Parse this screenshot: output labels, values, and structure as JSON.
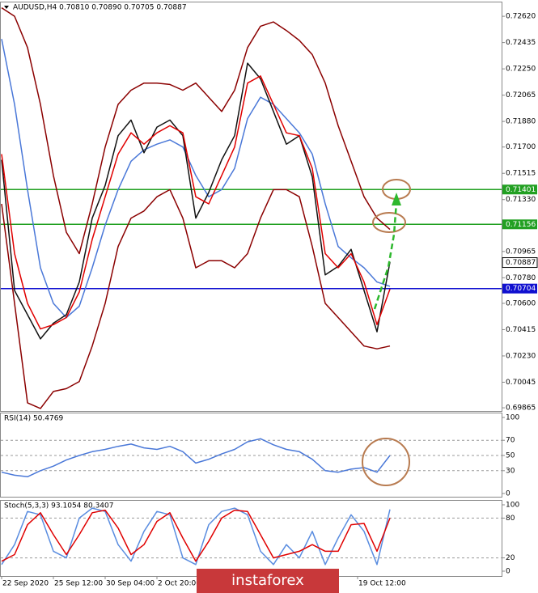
{
  "chart_data": [
    {
      "type": "line",
      "title": "AUDUSD,H4 0.70810 0.70890 0.70705 0.70887",
      "x": [
        0,
        4,
        8,
        12,
        16,
        20,
        24,
        28,
        32,
        36,
        40,
        44,
        48,
        52,
        56,
        60,
        64,
        68,
        72,
        76,
        80,
        84,
        88,
        92,
        96,
        100,
        104,
        108,
        112,
        116,
        120
      ],
      "xlim": [
        0,
        155
      ],
      "series": [
        {
          "color": "#8b0000",
          "values": [
            0.7268,
            0.7262,
            0.724,
            0.72,
            0.715,
            0.711,
            0.7095,
            0.713,
            0.717,
            0.72,
            0.721,
            0.7215,
            0.7215,
            0.7214,
            0.721,
            0.7215,
            0.7205,
            0.7195,
            0.721,
            0.724,
            0.7255,
            0.7258,
            0.7252,
            0.7245,
            0.7235,
            0.7215,
            0.7185,
            0.716,
            0.7135,
            0.712,
            0.7112
          ]
        },
        {
          "color": "#8b0000",
          "values": [
            0.713,
            0.706,
            0.699,
            0.6986,
            0.6998,
            0.7,
            0.7005,
            0.703,
            0.706,
            0.71,
            0.712,
            0.7125,
            0.7135,
            0.714,
            0.712,
            0.7085,
            0.709,
            0.709,
            0.7085,
            0.7095,
            0.712,
            0.714,
            0.714,
            0.7135,
            0.71,
            0.706,
            0.705,
            0.704,
            0.703,
            0.7028,
            0.703
          ]
        },
        {
          "color": "#4a78d8",
          "values": [
            0.7246,
            0.72,
            0.714,
            0.7085,
            0.706,
            0.705,
            0.7058,
            0.7085,
            0.7115,
            0.714,
            0.716,
            0.7168,
            0.7172,
            0.7175,
            0.717,
            0.715,
            0.7135,
            0.714,
            0.7155,
            0.719,
            0.7205,
            0.72,
            0.719,
            0.718,
            0.7165,
            0.713,
            0.71,
            0.7092,
            0.7085,
            0.7075,
            0.7072
          ]
        },
        {
          "color": "#111111",
          "values": [
            0.7161,
            0.7069,
            0.7052,
            0.7035,
            0.7046,
            0.7052,
            0.7075,
            0.712,
            0.7143,
            0.7178,
            0.7189,
            0.7166,
            0.7184,
            0.7189,
            0.7178,
            0.712,
            0.7138,
            0.7161,
            0.7178,
            0.7229,
            0.7218,
            0.7195,
            0.7172,
            0.7178,
            0.7149,
            0.708,
            0.7086,
            0.7098,
            0.7069,
            0.704,
            0.7089
          ]
        },
        {
          "color": "#e00000",
          "values": [
            0.7165,
            0.7095,
            0.706,
            0.7042,
            0.7045,
            0.705,
            0.7068,
            0.7105,
            0.7135,
            0.7165,
            0.718,
            0.7172,
            0.718,
            0.7185,
            0.718,
            0.7135,
            0.713,
            0.715,
            0.717,
            0.7215,
            0.722,
            0.72,
            0.718,
            0.7178,
            0.7155,
            0.7095,
            0.7085,
            0.7095,
            0.7075,
            0.7045,
            0.707
          ]
        }
      ],
      "ylim": [
        0.69854,
        0.72689
      ],
      "yticks": [
        {
          "value": 0.7262,
          "label": "0.72620"
        },
        0.72435,
        {
          "value": 0.7225,
          "label": "0.72250"
        },
        0.72065,
        {
          "value": 0.7188,
          "label": "0.71880"
        },
        {
          "value": 0.717,
          "label": "0.71700"
        },
        0.71515,
        {
          "value": 0.7133,
          "label": "0.71330"
        },
        0.70965,
        {
          "value": 0.7078,
          "label": "0.70780"
        },
        {
          "value": 0.706,
          "label": "0.70600"
        },
        0.70415,
        {
          "value": 0.7023,
          "label": "0.70230"
        },
        0.70045,
        0.69865
      ],
      "price_lines": [
        {
          "value": 0.71401,
          "color": "#22a022"
        },
        {
          "value": 0.71156,
          "color": "#22a022"
        },
        {
          "value": 0.70704,
          "color": "#1010d0"
        }
      ],
      "last_price": 0.70887
    },
    {
      "type": "line",
      "title": "RSI(14) 50.4769",
      "x": [
        0,
        4,
        8,
        12,
        16,
        20,
        24,
        28,
        32,
        36,
        40,
        44,
        48,
        52,
        56,
        60,
        64,
        68,
        72,
        76,
        80,
        84,
        88,
        92,
        96,
        100,
        104,
        108,
        112,
        116,
        120
      ],
      "xlim": [
        0,
        155
      ],
      "series": [
        {
          "color": "#4a78d8",
          "values": [
            28,
            24,
            22,
            30,
            36,
            44,
            50,
            55,
            58,
            62,
            65,
            60,
            58,
            62,
            55,
            40,
            45,
            52,
            58,
            68,
            72,
            64,
            58,
            55,
            45,
            30,
            28,
            32,
            34,
            28,
            50
          ]
        }
      ],
      "ylim": [
        0,
        100
      ],
      "yticks": [
        100,
        70,
        50,
        30,
        0
      ],
      "levels": [
        70,
        50,
        30
      ]
    },
    {
      "type": "line",
      "title": "Stoch(5,3,3) 93.1054 80.3407",
      "x": [
        0,
        4,
        8,
        12,
        16,
        20,
        24,
        28,
        32,
        36,
        40,
        44,
        48,
        52,
        56,
        60,
        64,
        68,
        72,
        76,
        80,
        84,
        88,
        92,
        96,
        100,
        104,
        108,
        112,
        116,
        120
      ],
      "xlim": [
        0,
        155
      ],
      "series": [
        {
          "color": "#5a8de0",
          "values": [
            10,
            40,
            90,
            85,
            30,
            20,
            80,
            95,
            90,
            40,
            15,
            60,
            90,
            85,
            20,
            10,
            70,
            90,
            95,
            85,
            30,
            10,
            40,
            20,
            60,
            10,
            50,
            85,
            60,
            10,
            93
          ]
        },
        {
          "color": "#e00000",
          "values": [
            15,
            25,
            70,
            88,
            55,
            25,
            55,
            88,
            92,
            65,
            25,
            40,
            75,
            88,
            50,
            15,
            45,
            80,
            92,
            90,
            55,
            20,
            25,
            30,
            40,
            30,
            30,
            70,
            72,
            30,
            80
          ]
        }
      ],
      "ylim": [
        0,
        100
      ],
      "yticks": [
        100,
        80,
        20,
        0
      ],
      "levels": [
        80,
        20
      ],
      "xticks": [
        {
          "value": 0,
          "label": "22 Sep 2020"
        },
        {
          "value": 16,
          "label": "25 Sep 12:00"
        },
        {
          "value": 32,
          "label": "30 Sep 04:00"
        },
        {
          "value": 48,
          "label": "2 Oct 20:00"
        },
        {
          "value": 110,
          "label": "19 Oct 12:00"
        }
      ],
      "watermark": "instaforex"
    }
  ]
}
